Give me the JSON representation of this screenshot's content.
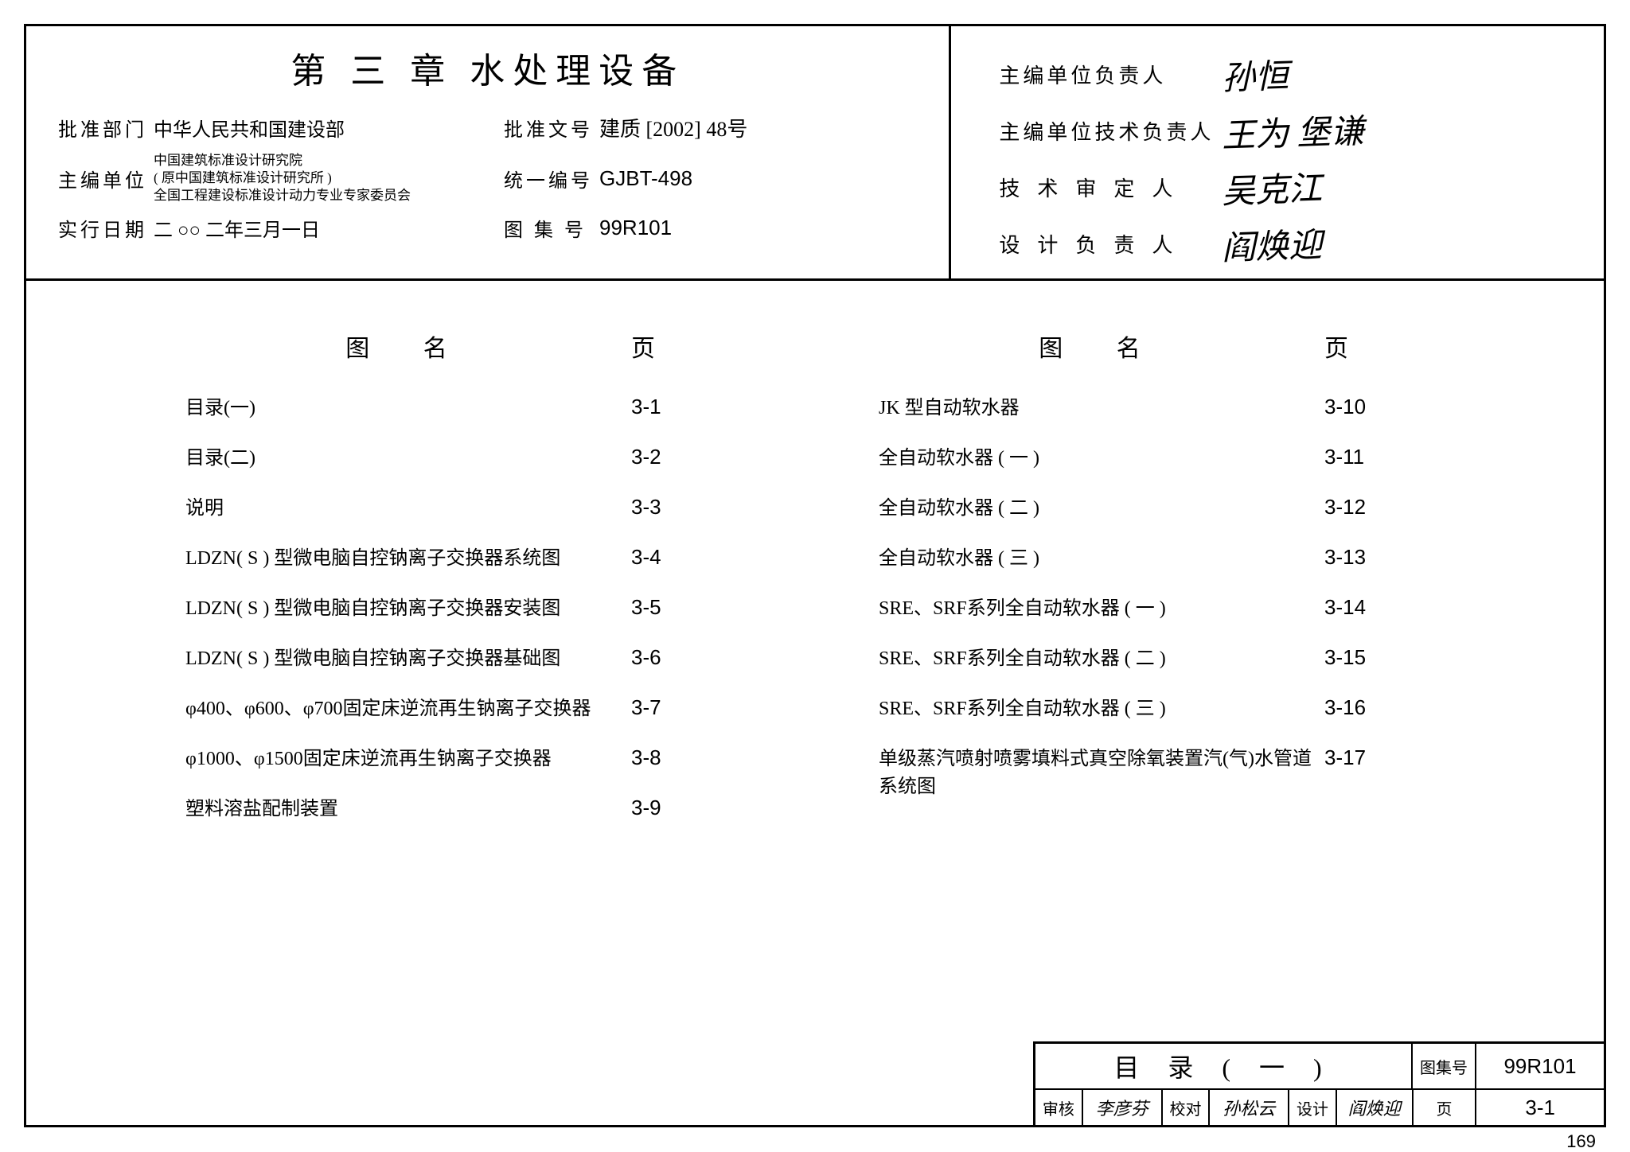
{
  "chapter_title": "第 三 章  水处理设备",
  "header_left": {
    "rows": [
      {
        "label1": "批准部门",
        "val1": "中华人民共和国建设部",
        "val1_small": false,
        "label2": "批准文号",
        "val2": "建质 [2002] 48号",
        "val2_cn": true
      },
      {
        "label1": "主编单位",
        "val1": "中国建筑标准设计研究院\n( 原中国建筑标准设计研究所 )\n全国工程建设标准设计动力专业专家委员会",
        "val1_small": true,
        "label2": "统一编号",
        "val2": "GJBT-498",
        "val2_cn": false
      },
      {
        "label1": "实行日期",
        "val1": "二 ○○ 二年三月一日",
        "val1_small": false,
        "label2": "图 集 号",
        "val2": "99R101",
        "val2_cn": false
      }
    ]
  },
  "header_right": {
    "rows": [
      {
        "label": "主编单位负责人",
        "wide": false,
        "sig": "孙恒"
      },
      {
        "label": "主编单位技术负责人",
        "wide": false,
        "sig": "王为 堡谦"
      },
      {
        "label": "技术审定人",
        "wide": true,
        "sig": "吴克江"
      },
      {
        "label": "设计负责人",
        "wide": true,
        "sig": "阎焕迎"
      }
    ]
  },
  "toc": {
    "head_name": "图 名",
    "head_page": "页",
    "left": [
      {
        "name": "目录(一)",
        "page": "3-1"
      },
      {
        "name": "目录(二)",
        "page": "3-2"
      },
      {
        "name": "说明",
        "page": "3-3"
      },
      {
        "name": "LDZN( S ) 型微电脑自控钠离子交换器系统图",
        "page": "3-4"
      },
      {
        "name": "LDZN( S ) 型微电脑自控钠离子交换器安装图",
        "page": "3-5"
      },
      {
        "name": "LDZN( S ) 型微电脑自控钠离子交换器基础图",
        "page": "3-6"
      },
      {
        "name": "φ400、φ600、φ700固定床逆流再生钠离子交换器",
        "page": "3-7"
      },
      {
        "name": "φ1000、φ1500固定床逆流再生钠离子交换器",
        "page": "3-8"
      },
      {
        "name": "塑料溶盐配制装置",
        "page": "3-9"
      }
    ],
    "right": [
      {
        "name": "JK 型自动软水器",
        "page": "3-10"
      },
      {
        "name": "全自动软水器 ( 一 )",
        "page": "3-11"
      },
      {
        "name": "全自动软水器 ( 二 )",
        "page": "3-12"
      },
      {
        "name": "全自动软水器 ( 三 )",
        "page": "3-13"
      },
      {
        "name": "SRE、SRF系列全自动软水器 ( 一 )",
        "page": "3-14"
      },
      {
        "name": "SRE、SRF系列全自动软水器 ( 二 )",
        "page": "3-15"
      },
      {
        "name": "SRE、SRF系列全自动软水器 ( 三 )",
        "page": "3-16"
      },
      {
        "name": "单级蒸汽喷射喷雾填料式真空除氧装置汽(气)水管道系统图",
        "page": "3-17"
      }
    ]
  },
  "title_block": {
    "title": "目 录 ( 一 )",
    "set_label": "图集号",
    "set_val": "99R101",
    "review_label": "审核",
    "review_sig": "李彦芬",
    "proof_label": "校对",
    "proof_sig": "孙松云",
    "design_label": "设计",
    "design_sig": "阎焕迎",
    "page_label": "页",
    "page_val": "3-1"
  },
  "outside_page": "169"
}
